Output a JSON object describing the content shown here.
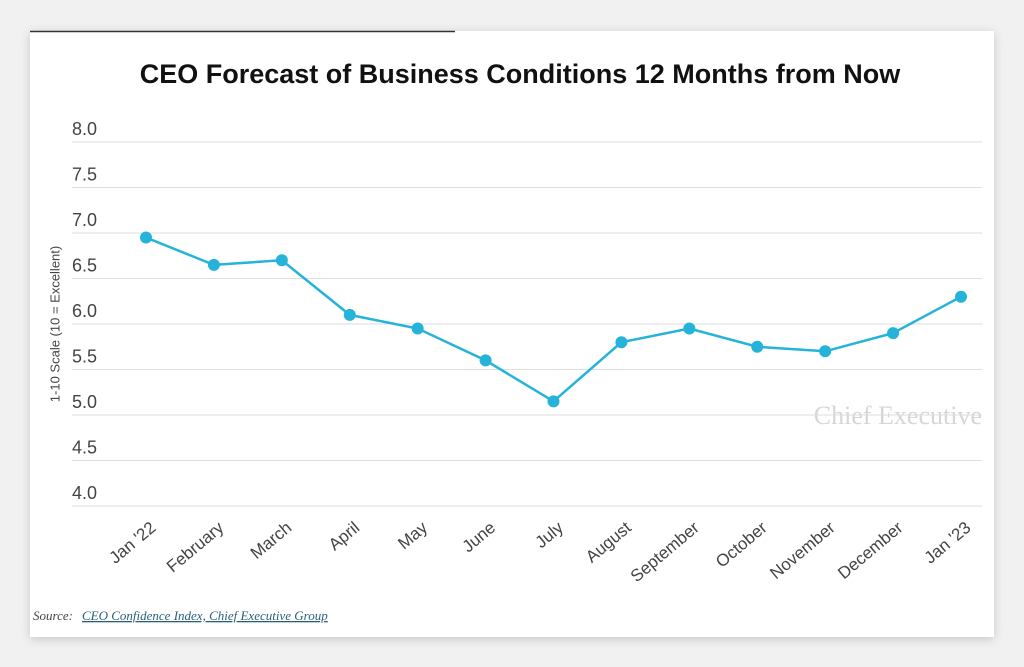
{
  "chart_data": {
    "type": "line",
    "title": "CEO Forecast of Business Conditions 12 Months from Now",
    "y_label": "1-10 Scale (10 = Excellent)",
    "categories": [
      "Jan '22",
      "February",
      "March",
      "April",
      "May",
      "June",
      "July",
      "August",
      "September",
      "October",
      "November",
      "December",
      "Jan '23"
    ],
    "values": [
      6.95,
      6.65,
      6.7,
      6.1,
      5.95,
      5.6,
      5.15,
      5.8,
      5.95,
      5.75,
      5.7,
      5.9,
      6.3
    ],
    "color": "#26b3d9",
    "ylim": [
      4,
      8
    ],
    "yticks": [
      {
        "value": 4,
        "label": "4.0"
      },
      4.5,
      {
        "value": 5,
        "label": "5.0"
      },
      5.5,
      {
        "value": 6,
        "label": "6.0"
      },
      6.5,
      {
        "value": 7,
        "label": "7.0"
      },
      7.5,
      {
        "value": 8,
        "label": "8.0"
      }
    ],
    "grid": true,
    "watermark": "Chief Executive",
    "source_label": "Source:",
    "source_link": "CEO Confidence Index, Chief Executive Group"
  }
}
